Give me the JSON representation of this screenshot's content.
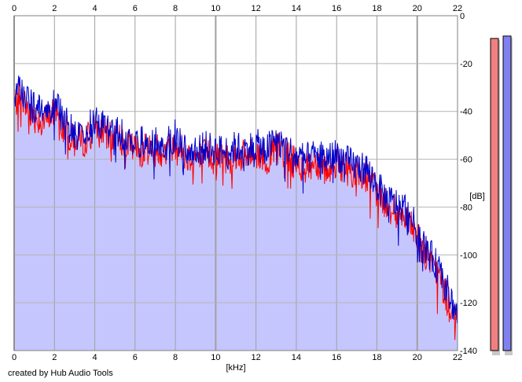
{
  "chart_data": {
    "type": "line",
    "xlabel": "[kHz]",
    "ylabel": "[dB]",
    "xlim": [
      0,
      22
    ],
    "ylim": [
      -140,
      0
    ],
    "xticks": [
      0,
      2,
      4,
      6,
      8,
      10,
      12,
      14,
      16,
      18,
      20,
      22
    ],
    "xtick_labels": [
      "0",
      "2",
      "4",
      "6",
      "8",
      "10",
      "12",
      "14",
      "16",
      "18",
      "20",
      "22"
    ],
    "yticks": [
      0,
      -20,
      -40,
      -60,
      -80,
      -100,
      -120,
      -140
    ],
    "ytick_labels": [
      "0",
      "-20",
      "-40",
      "-60",
      "-80",
      "-100",
      "-120",
      "-140"
    ],
    "grid": true,
    "fill_color": "#c6c6ff",
    "series": [
      {
        "color": "#ff0000",
        "x": [
          0,
          0.3,
          0.6,
          1,
          1.5,
          2,
          2.5,
          3,
          3.5,
          4,
          4.5,
          5,
          5.5,
          6,
          6.5,
          7,
          7.5,
          8,
          8.5,
          9,
          9.5,
          10,
          10.5,
          11,
          11.5,
          12,
          12.5,
          13,
          13.5,
          14,
          14.5,
          15,
          15.5,
          16,
          16.5,
          17,
          17.5,
          18,
          18.5,
          19,
          19.5,
          20,
          20.5,
          21,
          21.5,
          22
        ],
        "values": [
          -37,
          -33,
          -38,
          -42,
          -44,
          -40,
          -47,
          -53,
          -52,
          -47,
          -50,
          -51,
          -53,
          -56,
          -56,
          -55,
          -57,
          -53,
          -58,
          -59,
          -58,
          -59,
          -60,
          -58,
          -59,
          -57,
          -60,
          -55,
          -58,
          -62,
          -63,
          -61,
          -64,
          -61,
          -64,
          -66,
          -67,
          -74,
          -80,
          -82,
          -84,
          -93,
          -101,
          -108,
          -118,
          -128
        ]
      },
      {
        "color": "#0000cc",
        "x": [
          0,
          0.3,
          0.6,
          1,
          1.5,
          2,
          2.5,
          3,
          3.5,
          4,
          4.5,
          5,
          5.5,
          6,
          6.5,
          7,
          7.5,
          8,
          8.5,
          9,
          9.5,
          10,
          10.5,
          11,
          11.5,
          12,
          12.5,
          13,
          13.5,
          14,
          14.5,
          15,
          15.5,
          16,
          16.5,
          17,
          17.5,
          18,
          18.5,
          19,
          19.5,
          20,
          20.5,
          21,
          21.5,
          22
        ],
        "values": [
          -34,
          -30,
          -35,
          -39,
          -41,
          -37,
          -44,
          -50,
          -49,
          -44,
          -47,
          -48,
          -50,
          -53,
          -53,
          -52,
          -54,
          -50,
          -55,
          -56,
          -55,
          -56,
          -57,
          -55,
          -56,
          -54,
          -56,
          -52,
          -55,
          -59,
          -60,
          -58,
          -60,
          -58,
          -61,
          -63,
          -64,
          -71,
          -77,
          -79,
          -81,
          -90,
          -98,
          -105,
          -115,
          -125
        ]
      }
    ],
    "level_meters": [
      {
        "color": "#f08080",
        "value": -9.5
      },
      {
        "color": "#8080f0",
        "value": -8.5
      }
    ]
  },
  "credit": "created by Hub Audio Tools"
}
